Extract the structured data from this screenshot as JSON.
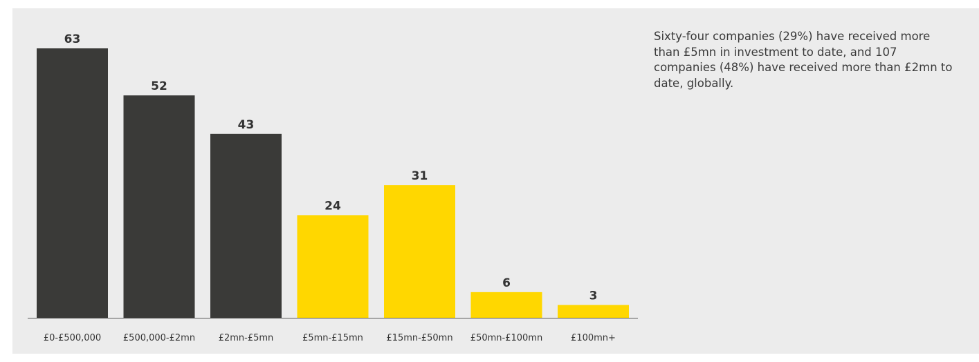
{
  "chart_data": {
    "type": "bar",
    "categories": [
      "£0-£500,000",
      "£500,000-£2mn",
      "£2mn-£5mn",
      "£5mn-£15mn",
      "£15mn-£50mn",
      "£50mn-£100mn",
      "£100mn+"
    ],
    "values": [
      63,
      52,
      43,
      24,
      31,
      6,
      3
    ],
    "ylim": [
      0,
      63
    ],
    "grid": false,
    "colors": {
      "dark": "#3a3a38",
      "highlight": "#ffd700",
      "axis": "#555555"
    },
    "bar_colors": [
      "#3a3a38",
      "#3a3a38",
      "#3a3a38",
      "#ffd700",
      "#ffd700",
      "#ffd700",
      "#ffd700"
    ]
  },
  "caption": "Sixty-four companies (29%) have received more than £5mn in investment to date, and 107 companies (48%) have received more than £2mn to date, globally."
}
